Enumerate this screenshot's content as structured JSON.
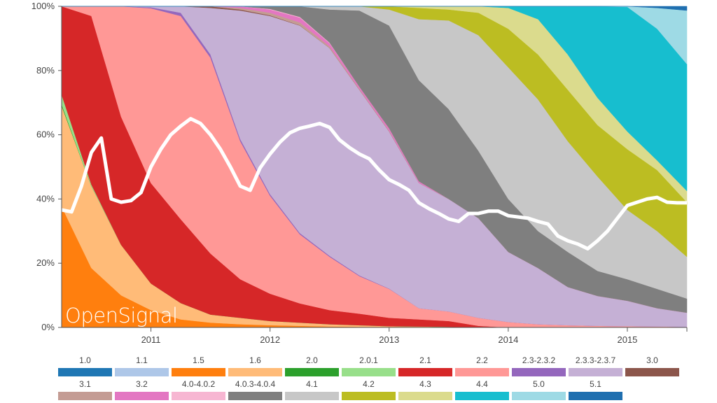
{
  "chart_data": {
    "type": "area",
    "stacked": true,
    "percent_stacked": true,
    "title": "",
    "xlabel": "",
    "ylabel": "",
    "ylim": [
      0,
      100
    ],
    "y_ticks": [
      "0%",
      "20%",
      "40%",
      "60%",
      "80%",
      "100%"
    ],
    "x_ticks": [
      "2011",
      "2012",
      "2013",
      "2014",
      "2015"
    ],
    "x_range": [
      "2010-04",
      "2015-07"
    ],
    "grid": false,
    "legend_position": "bottom",
    "watermark": "OpenSignal",
    "x": [
      "2010-04",
      "2010-07",
      "2010-10",
      "2011-01",
      "2011-04",
      "2011-07",
      "2011-10",
      "2012-01",
      "2012-04",
      "2012-07",
      "2012-10",
      "2013-01",
      "2013-04",
      "2013-07",
      "2013-10",
      "2014-01",
      "2014-04",
      "2014-07",
      "2014-10",
      "2015-01",
      "2015-04",
      "2015-07"
    ],
    "series": [
      {
        "name": "1.0",
        "color": "#1f77b4",
        "values": [
          0,
          0,
          0,
          0,
          0,
          0,
          0,
          0,
          0,
          0,
          0,
          0,
          0,
          0,
          0,
          0,
          0,
          0,
          0,
          0,
          0,
          0
        ]
      },
      {
        "name": "1.1",
        "color": "#aec7e8",
        "values": [
          0,
          0,
          0,
          0,
          0,
          0,
          0,
          0,
          0,
          0,
          0,
          0,
          0,
          0,
          0,
          0,
          0,
          0,
          0,
          0,
          0,
          0
        ]
      },
      {
        "name": "1.5",
        "color": "#ff7f0e",
        "values": [
          37.7,
          18.5,
          10,
          5.4,
          2.5,
          1.5,
          1,
          0.7,
          0.5,
          0.3,
          0.2,
          0.1,
          0.1,
          0,
          0,
          0,
          0,
          0,
          0,
          0,
          0,
          0
        ]
      },
      {
        "name": "1.6",
        "color": "#ffbb78",
        "values": [
          31.3,
          25.5,
          15.7,
          8.3,
          5.1,
          2.5,
          2,
          1.3,
          1,
          0.7,
          0.5,
          0.3,
          0.2,
          0.2,
          0,
          0,
          0,
          0,
          0,
          0,
          0,
          0
        ]
      },
      {
        "name": "2.0",
        "color": "#2ca02c",
        "values": [
          0.5,
          0,
          0,
          0,
          0,
          0,
          0,
          0,
          0,
          0,
          0,
          0,
          0,
          0,
          0,
          0,
          0,
          0,
          0,
          0,
          0,
          0
        ]
      },
      {
        "name": "2.0.1",
        "color": "#98df8a",
        "values": [
          3,
          0.5,
          0,
          0,
          0,
          0,
          0,
          0,
          0,
          0,
          0,
          0,
          0,
          0,
          0,
          0,
          0,
          0,
          0,
          0,
          0,
          0
        ]
      },
      {
        "name": "2.1",
        "color": "#d62728",
        "values": [
          27.5,
          52.5,
          39.9,
          31.3,
          26.1,
          19,
          12,
          8.5,
          6,
          4.4,
          3.6,
          2.6,
          2.2,
          1.8,
          0.5,
          0,
          0,
          0,
          0,
          0,
          0,
          0
        ]
      },
      {
        "name": "2.2",
        "color": "#ff9896",
        "values": [
          0,
          3,
          34.4,
          54.5,
          63.3,
          61,
          43,
          30.5,
          21.5,
          16.6,
          11.7,
          9,
          3.5,
          3,
          2.5,
          1.7,
          1,
          0.7,
          0.5,
          0.4,
          0.3,
          0.2
        ]
      },
      {
        "name": "2.3-2.3.2",
        "color": "#9467bd",
        "values": [
          0,
          0,
          0,
          0.3,
          1,
          1,
          0.7,
          0.5,
          0.4,
          0.3,
          0.2,
          0.1,
          0,
          0,
          0,
          0,
          0,
          0,
          0,
          0,
          0,
          0
        ]
      },
      {
        "name": "2.3.3-2.3.7",
        "color": "#c5b0d5",
        "values": [
          0,
          0,
          0,
          0.3,
          2,
          14.5,
          40,
          55.5,
          64.6,
          64.7,
          57.8,
          48.9,
          39,
          35,
          31,
          21.8,
          17.5,
          11.9,
          9.3,
          7.9,
          5.7,
          4.4
        ]
      },
      {
        "name": "3.0",
        "color": "#8c564b",
        "values": [
          0,
          0,
          0,
          0,
          0,
          0.5,
          0.3,
          0.2,
          0.1,
          0,
          0,
          0,
          0,
          0,
          0,
          0,
          0,
          0,
          0,
          0,
          0,
          0
        ]
      },
      {
        "name": "3.1",
        "color": "#c49c94",
        "values": [
          0,
          0,
          0,
          0,
          0,
          0,
          0.5,
          0.8,
          0.9,
          0.5,
          0.3,
          0.2,
          0,
          0,
          0,
          0,
          0,
          0,
          0,
          0,
          0,
          0
        ]
      },
      {
        "name": "3.2",
        "color": "#e377c2",
        "values": [
          0,
          0,
          0,
          0,
          0,
          0,
          0.5,
          1,
          1.5,
          1,
          0.7,
          0.8,
          0.5,
          0,
          0,
          0,
          0,
          0,
          0,
          0,
          0,
          0
        ]
      },
      {
        "name": "4.0-4.0.2",
        "color": "#f7b6d2",
        "values": [
          0,
          0,
          0,
          0,
          0,
          0,
          0,
          0.2,
          0.2,
          0.2,
          0,
          0,
          0,
          0,
          0,
          0,
          0,
          0,
          0,
          0,
          0,
          0
        ]
      },
      {
        "name": "4.0.3-4.0.4",
        "color": "#7f7f7f",
        "values": [
          0,
          0,
          0,
          0,
          0,
          0,
          0,
          0.8,
          3.3,
          10.3,
          23.7,
          32,
          31.5,
          28,
          21,
          16.5,
          11.5,
          10.9,
          7.8,
          6.7,
          6,
          4.4
        ]
      },
      {
        "name": "4.1",
        "color": "#c7c7c7",
        "values": [
          0,
          0,
          0,
          0,
          0,
          0,
          0,
          0,
          0,
          1,
          1.3,
          5,
          19,
          27.6,
          36,
          41,
          41,
          34.5,
          29.4,
          21.6,
          18,
          13
        ]
      },
      {
        "name": "4.2",
        "color": "#bcbd22",
        "values": [
          0,
          0,
          0,
          0,
          0,
          0,
          0,
          0,
          0,
          0,
          0,
          1,
          3.5,
          3.4,
          7,
          12,
          14,
          16,
          16,
          18.9,
          19,
          17
        ]
      },
      {
        "name": "4.3",
        "color": "#dbdb8d",
        "values": [
          0,
          0,
          0,
          0,
          0,
          0,
          0,
          0,
          0,
          0,
          0,
          0,
          0.5,
          1,
          2,
          6.5,
          11,
          11,
          8.5,
          5.5,
          3,
          3.5
        ]
      },
      {
        "name": "4.4",
        "color": "#17becf",
        "values": [
          0,
          0,
          0,
          0,
          0,
          0,
          0,
          0,
          0,
          0,
          0,
          0,
          0,
          0,
          0,
          0.5,
          4,
          15,
          28.5,
          38.8,
          41,
          39.5
        ]
      },
      {
        "name": "5.0",
        "color": "#9edae5",
        "values": [
          0,
          0,
          0,
          0,
          0,
          0,
          0,
          0,
          0,
          0,
          0,
          0,
          0,
          0,
          0,
          0,
          0,
          0,
          0,
          0.2,
          6.5,
          16.7
        ]
      },
      {
        "name": "5.1",
        "color": "#1f6fb0",
        "values": [
          0,
          0,
          0,
          0,
          0,
          0,
          0,
          0,
          0,
          0,
          0,
          0,
          0,
          0,
          0,
          0,
          0,
          0,
          0,
          0,
          0.5,
          1.3
        ]
      }
    ],
    "overlay_line": {
      "color": "#ffffff",
      "x": [
        "2010-04",
        "2010-05",
        "2010-06",
        "2010-07",
        "2010-08",
        "2010-09",
        "2010-10",
        "2010-11",
        "2010-12",
        "2011-01",
        "2011-02",
        "2011-03",
        "2011-04",
        "2011-05",
        "2011-06",
        "2011-07",
        "2011-08",
        "2011-09",
        "2011-10",
        "2011-11",
        "2011-12",
        "2012-01",
        "2012-02",
        "2012-03",
        "2012-04",
        "2012-05",
        "2012-06",
        "2012-07",
        "2012-08",
        "2012-09",
        "2012-10",
        "2012-11",
        "2012-12",
        "2013-01",
        "2013-02",
        "2013-03",
        "2013-04",
        "2013-05",
        "2013-06",
        "2013-07",
        "2013-08",
        "2013-09",
        "2013-10",
        "2013-11",
        "2013-12",
        "2014-01",
        "2014-02",
        "2014-03",
        "2014-04",
        "2014-05",
        "2014-06",
        "2014-07",
        "2014-08",
        "2014-09",
        "2014-10",
        "2014-11",
        "2014-12",
        "2015-01",
        "2015-02",
        "2015-03",
        "2015-04",
        "2015-05",
        "2015-06",
        "2015-07"
      ],
      "y": [
        36.6,
        36,
        44,
        54.5,
        59,
        40,
        39,
        39.5,
        42,
        50,
        55.5,
        60,
        62.7,
        65,
        63.5,
        60,
        55.5,
        50,
        44,
        42.7,
        49.7,
        54,
        57.7,
        60.6,
        62,
        62.7,
        63.5,
        62.3,
        58.4,
        56,
        54,
        52.5,
        49,
        46,
        44.5,
        42.7,
        38.8,
        37,
        35.5,
        33.8,
        33,
        35.5,
        35.5,
        36.2,
        36.2,
        34.8,
        34.4,
        34,
        33,
        32.2,
        28.5,
        27,
        26,
        24.5,
        27,
        30,
        34,
        38,
        39,
        40,
        40.5,
        39,
        38.8,
        38.8
      ]
    }
  }
}
